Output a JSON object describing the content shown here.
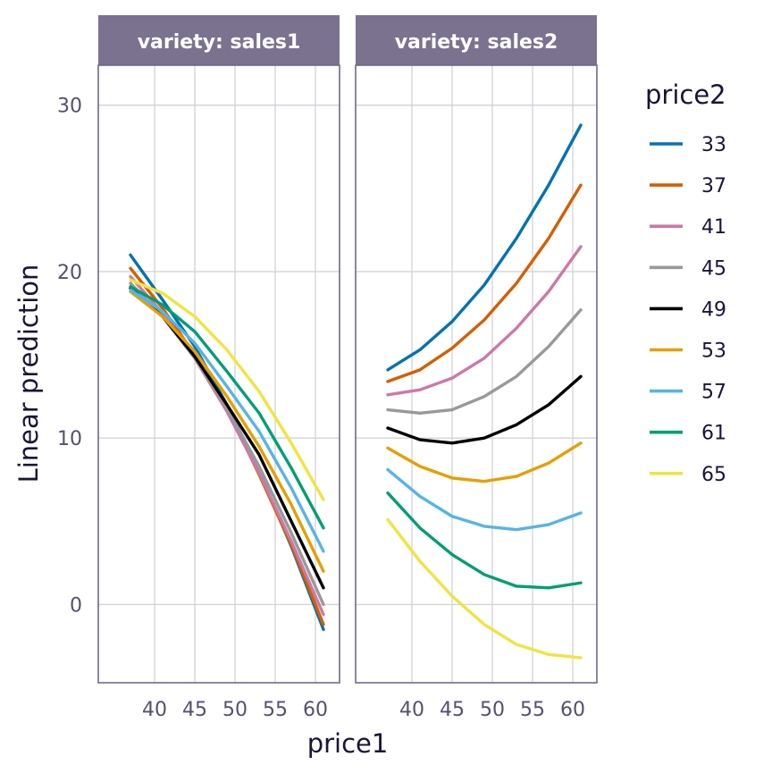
{
  "chart_data": {
    "type": "line",
    "x": [
      37,
      41,
      45,
      49,
      53,
      57,
      61
    ],
    "xlabel": "price1",
    "ylabel": "Linear prediction",
    "xlim": [
      33,
      63
    ],
    "ylim": [
      -4.7,
      32.4
    ],
    "x_ticks": [
      40,
      45,
      50,
      55,
      60
    ],
    "y_ticks": [
      0,
      10,
      20,
      30
    ],
    "grid": true,
    "legend": {
      "title": "price2",
      "placement": "right",
      "entries": [
        "33",
        "37",
        "41",
        "45",
        "49",
        "53",
        "57",
        "61",
        "65"
      ]
    },
    "colors": [
      "#0072B2",
      "#D55E00",
      "#CC79A7",
      "#999999",
      "#000000",
      "#E69F00",
      "#56B4E9",
      "#009E73",
      "#F0E442"
    ],
    "strip_color": "#7a728f",
    "panels": [
      {
        "strip": "variety: sales1",
        "series": [
          {
            "name": "33",
            "values": [
              21.0,
              18.3,
              15.5,
              12.0,
              8.0,
              3.5,
              -1.5
            ]
          },
          {
            "name": "37",
            "values": [
              20.2,
              17.8,
              15.0,
              11.8,
              7.8,
              3.6,
              -1.2
            ]
          },
          {
            "name": "41",
            "values": [
              19.7,
              17.5,
              14.8,
              11.6,
              7.9,
              3.8,
              -0.6
            ]
          },
          {
            "name": "45",
            "values": [
              19.3,
              17.3,
              14.8,
              11.8,
              8.3,
              4.3,
              0.0
            ]
          },
          {
            "name": "49",
            "values": [
              19.0,
              17.3,
              14.9,
              12.0,
              9.0,
              5.0,
              1.0
            ]
          },
          {
            "name": "53",
            "values": [
              18.8,
              17.3,
              15.2,
              12.5,
              9.5,
              6.0,
              2.0
            ]
          },
          {
            "name": "57",
            "values": [
              18.9,
              17.6,
              15.7,
              13.1,
              10.4,
              7.0,
              3.2
            ]
          },
          {
            "name": "61",
            "values": [
              19.1,
              18.0,
              16.4,
              14.0,
              11.5,
              8.2,
              4.6
            ]
          },
          {
            "name": "65",
            "values": [
              19.5,
              18.7,
              17.3,
              15.3,
              12.8,
              9.7,
              6.3
            ]
          }
        ]
      },
      {
        "strip": "variety: sales2",
        "series": [
          {
            "name": "33",
            "values": [
              14.1,
              15.3,
              17.0,
              19.2,
              22.0,
              25.2,
              28.8
            ]
          },
          {
            "name": "37",
            "values": [
              13.4,
              14.1,
              15.4,
              17.1,
              19.3,
              22.0,
              25.2
            ]
          },
          {
            "name": "41",
            "values": [
              12.6,
              12.9,
              13.6,
              14.8,
              16.6,
              18.8,
              21.5
            ]
          },
          {
            "name": "45",
            "values": [
              11.7,
              11.5,
              11.7,
              12.5,
              13.7,
              15.5,
              17.7
            ]
          },
          {
            "name": "49",
            "values": [
              10.6,
              9.9,
              9.7,
              10.0,
              10.8,
              12.0,
              13.7
            ]
          },
          {
            "name": "53",
            "values": [
              9.4,
              8.3,
              7.6,
              7.4,
              7.7,
              8.5,
              9.7
            ]
          },
          {
            "name": "57",
            "values": [
              8.1,
              6.5,
              5.3,
              4.7,
              4.5,
              4.8,
              5.5
            ]
          },
          {
            "name": "61",
            "values": [
              6.7,
              4.6,
              3.0,
              1.8,
              1.1,
              1.0,
              1.3
            ]
          },
          {
            "name": "65",
            "values": [
              5.1,
              2.6,
              0.5,
              -1.2,
              -2.4,
              -3.0,
              -3.2
            ]
          }
        ]
      }
    ]
  }
}
